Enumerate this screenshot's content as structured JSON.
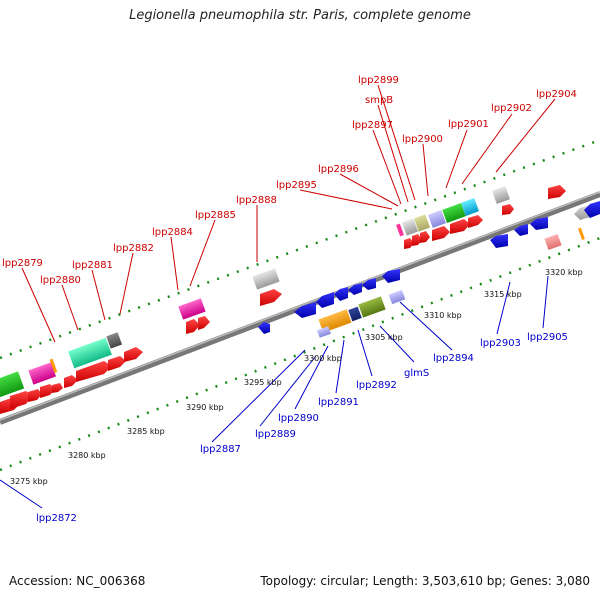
{
  "title": "Legionella pneumophila str. Paris, complete genome",
  "footer": {
    "accession": "Accession: NC_006368",
    "stats": "Topology: circular; Length: 3,503,610 bp; Genes: 3,080"
  },
  "colors": {
    "forward_label": "#cc0000",
    "reverse_label": "#0000cc",
    "backbone": "#888888",
    "tick": "#1a8a1a"
  },
  "scale_labels": [
    "3275 kbp",
    "3280 kbp",
    "3285 kbp",
    "3290 kbp",
    "3295 kbp",
    "3300 kbp",
    "3305 kbp",
    "3310 kbp",
    "3315 kbp",
    "3320 kbp"
  ],
  "top_labels": [
    "lpp2879",
    "lpp2880",
    "lpp2881",
    "lpp2882",
    "lpp2884",
    "lpp2885",
    "lpp2888",
    "lpp2895",
    "lpp2896",
    "lpp2897",
    "smpB",
    "lpp2899",
    "lpp2900",
    "lpp2901",
    "lpp2902",
    "lpp2904"
  ],
  "bottom_labels": [
    "lpp2872",
    "lpp2887",
    "lpp2889",
    "lpp2890",
    "lpp2891",
    "lpp2892",
    "glmS",
    "lpp2894",
    "lpp2903",
    "lpp2905"
  ]
}
